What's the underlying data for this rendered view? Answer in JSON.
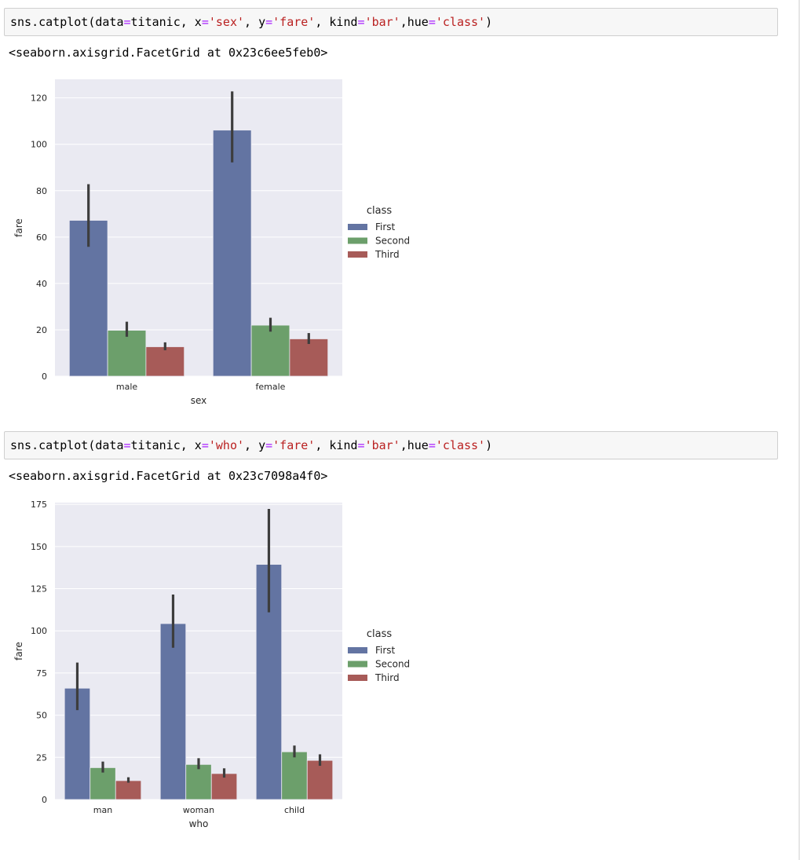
{
  "theme": {
    "axes_bg": "#eaeaf2",
    "grid": "#ffffff",
    "tick_text": "#262626",
    "errbar": "#3d3d3d",
    "code_bg": "#f7f7f7",
    "string_color": "#ba2121",
    "operator_color": "#aa22ff"
  },
  "cells": [
    {
      "code_tokens": [
        {
          "t": "sns.catplot(data",
          "c": "plain"
        },
        {
          "t": "=",
          "c": "op"
        },
        {
          "t": "titanic, x",
          "c": "plain"
        },
        {
          "t": "=",
          "c": "op"
        },
        {
          "t": "'sex'",
          "c": "str"
        },
        {
          "t": ", y",
          "c": "plain"
        },
        {
          "t": "=",
          "c": "op"
        },
        {
          "t": "'fare'",
          "c": "str"
        },
        {
          "t": ", kind",
          "c": "plain"
        },
        {
          "t": "=",
          "c": "op"
        },
        {
          "t": "'bar'",
          "c": "str"
        },
        {
          "t": ",hue",
          "c": "plain"
        },
        {
          "t": "=",
          "c": "op"
        },
        {
          "t": "'class'",
          "c": "str"
        },
        {
          "t": ")",
          "c": "plain"
        }
      ],
      "output": "<seaborn.axisgrid.FacetGrid at 0x23c6ee5feb0>"
    },
    {
      "code_tokens": [
        {
          "t": "sns.catplot(data",
          "c": "plain"
        },
        {
          "t": "=",
          "c": "op"
        },
        {
          "t": "titanic, x",
          "c": "plain"
        },
        {
          "t": "=",
          "c": "op"
        },
        {
          "t": "'who'",
          "c": "str"
        },
        {
          "t": ", y",
          "c": "plain"
        },
        {
          "t": "=",
          "c": "op"
        },
        {
          "t": "'fare'",
          "c": "str"
        },
        {
          "t": ", kind",
          "c": "plain"
        },
        {
          "t": "=",
          "c": "op"
        },
        {
          "t": "'bar'",
          "c": "str"
        },
        {
          "t": ",hue",
          "c": "plain"
        },
        {
          "t": "=",
          "c": "op"
        },
        {
          "t": "'class'",
          "c": "str"
        },
        {
          "t": ")",
          "c": "plain"
        }
      ],
      "output": "<seaborn.axisgrid.FacetGrid at 0x23c7098a4f0>"
    }
  ],
  "chart_data": [
    {
      "type": "bar",
      "title": "",
      "xlabel": "sex",
      "ylabel": "fare",
      "categories": [
        "male",
        "female"
      ],
      "ylim": [
        0,
        128
      ],
      "yticks": [
        0,
        20,
        40,
        60,
        80,
        100,
        120
      ],
      "grid": true,
      "legend": {
        "title": "class",
        "placement": "right"
      },
      "series": [
        {
          "name": "First",
          "color": "#6374a2",
          "values": [
            67.2,
            106.1
          ],
          "ci": [
            [
              55.8,
              82.8
            ],
            [
              92.2,
              122.8
            ]
          ]
        },
        {
          "name": "Second",
          "color": "#6c9f6b",
          "values": [
            19.8,
            22.0
          ],
          "ci": [
            [
              17.0,
              23.5
            ],
            [
              19.2,
              25.2
            ]
          ]
        },
        {
          "name": "Third",
          "color": "#a75b58",
          "values": [
            12.7,
            16.1
          ],
          "ci": [
            [
              11.2,
              14.6
            ],
            [
              13.9,
              18.6
            ]
          ]
        }
      ]
    },
    {
      "type": "bar",
      "title": "",
      "xlabel": "who",
      "ylabel": "fare",
      "categories": [
        "man",
        "woman",
        "child"
      ],
      "ylim": [
        0,
        176
      ],
      "yticks": [
        0,
        25,
        50,
        75,
        100,
        125,
        150,
        175
      ],
      "grid": true,
      "legend": {
        "title": "class",
        "placement": "right"
      },
      "series": [
        {
          "name": "First",
          "color": "#6374a2",
          "values": [
            66.0,
            104.3,
            139.4
          ],
          "ci": [
            [
              53.0,
              81.2
            ],
            [
              90.0,
              121.5
            ],
            [
              111.0,
              172.3
            ]
          ]
        },
        {
          "name": "Second",
          "color": "#6c9f6b",
          "values": [
            18.9,
            20.8,
            28.3
          ],
          "ci": [
            [
              16.0,
              22.5
            ],
            [
              18.0,
              24.5
            ],
            [
              25.0,
              32.0
            ]
          ]
        },
        {
          "name": "Third",
          "color": "#a75b58",
          "values": [
            11.2,
            15.4,
            23.2
          ],
          "ci": [
            [
              10.0,
              13.2
            ],
            [
              13.0,
              18.5
            ],
            [
              20.0,
              26.8
            ]
          ]
        }
      ]
    }
  ]
}
